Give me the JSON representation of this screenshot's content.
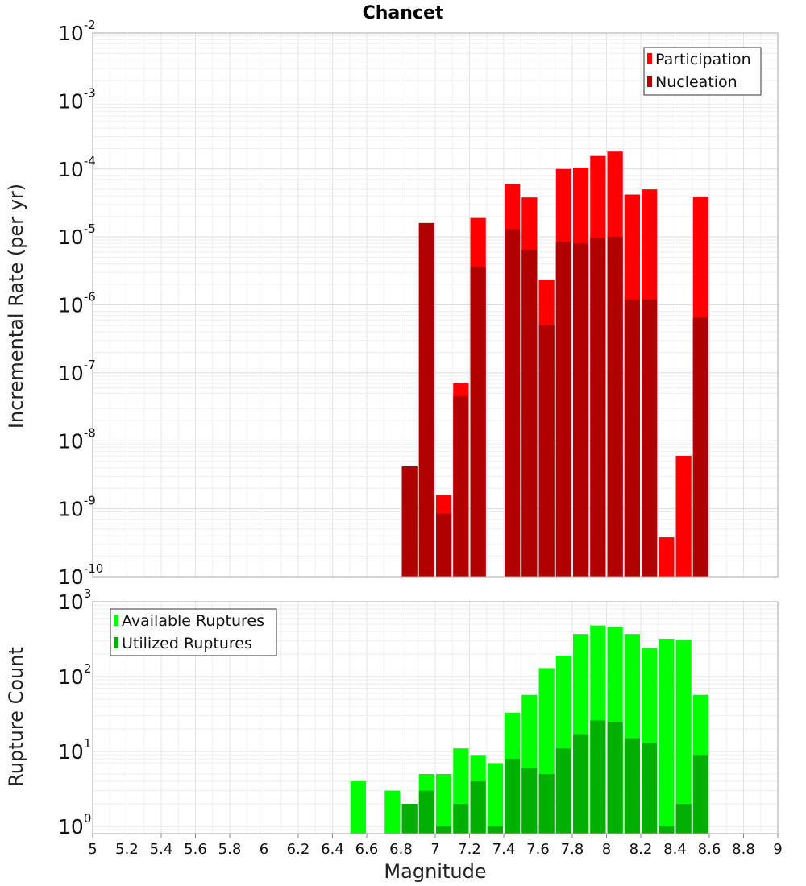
{
  "chart_data": {
    "title": "Chancet",
    "xlabel": "Magnitude",
    "xlim": [
      5,
      9
    ],
    "x_ticks": [
      "5",
      "5.2",
      "5.4",
      "5.6",
      "5.8",
      "6",
      "6.2",
      "6.4",
      "6.6",
      "6.8",
      "7",
      "7.2",
      "7.4",
      "7.6",
      "7.8",
      "8",
      "8.2",
      "8.4",
      "8.6",
      "8.8",
      "9"
    ],
    "grid": true,
    "bin_width": 0.1,
    "panels": [
      {
        "type": "bar",
        "scale": "log",
        "ylabel": "Incremental Rate (per yr)",
        "ylim": [
          1e-10,
          0.01
        ],
        "y_ticks": [
          {
            "base": "10",
            "exp": "-10"
          },
          {
            "base": "10",
            "exp": "-9"
          },
          {
            "base": "10",
            "exp": "-8"
          },
          {
            "base": "10",
            "exp": "-7"
          },
          {
            "base": "10",
            "exp": "-6"
          },
          {
            "base": "10",
            "exp": "-5"
          },
          {
            "base": "10",
            "exp": "-4"
          },
          {
            "base": "10",
            "exp": "-3"
          },
          {
            "base": "10",
            "exp": "-2"
          }
        ],
        "legend_position": "top-right",
        "series": [
          {
            "name": "Participation",
            "color": "#ff0000",
            "points": [
              {
                "x": 6.85,
                "y": 4.2e-09
              },
              {
                "x": 6.95,
                "y": 1.6e-05
              },
              {
                "x": 7.05,
                "y": 1.6e-09
              },
              {
                "x": 7.15,
                "y": 7e-08
              },
              {
                "x": 7.25,
                "y": 1.9e-05
              },
              {
                "x": 7.45,
                "y": 6e-05
              },
              {
                "x": 7.55,
                "y": 3.8e-05
              },
              {
                "x": 7.65,
                "y": 2.3e-06
              },
              {
                "x": 7.75,
                "y": 0.0001
              },
              {
                "x": 7.85,
                "y": 0.000105
              },
              {
                "x": 7.95,
                "y": 0.000155
              },
              {
                "x": 8.05,
                "y": 0.00018
              },
              {
                "x": 8.15,
                "y": 4.2e-05
              },
              {
                "x": 8.25,
                "y": 5e-05
              },
              {
                "x": 8.35,
                "y": 3.8e-10
              },
              {
                "x": 8.45,
                "y": 6e-09
              },
              {
                "x": 8.55,
                "y": 3.9e-05
              }
            ]
          },
          {
            "name": "Nucleation",
            "color": "#b00000",
            "points": [
              {
                "x": 6.85,
                "y": 4.2e-09
              },
              {
                "x": 6.95,
                "y": 1.6e-05
              },
              {
                "x": 7.05,
                "y": 8.5e-10
              },
              {
                "x": 7.15,
                "y": 4.5e-08
              },
              {
                "x": 7.25,
                "y": 3.6e-06
              },
              {
                "x": 7.45,
                "y": 1.3e-05
              },
              {
                "x": 7.55,
                "y": 6.5e-06
              },
              {
                "x": 7.65,
                "y": 5e-07
              },
              {
                "x": 7.75,
                "y": 8.5e-06
              },
              {
                "x": 7.85,
                "y": 8e-06
              },
              {
                "x": 7.95,
                "y": 9.5e-06
              },
              {
                "x": 8.05,
                "y": 1e-05
              },
              {
                "x": 8.15,
                "y": 1.2e-06
              },
              {
                "x": 8.25,
                "y": 1.2e-06
              },
              {
                "x": 8.55,
                "y": 6.5e-07
              }
            ]
          }
        ]
      },
      {
        "type": "bar",
        "scale": "log",
        "ylabel": "Rupture Count",
        "ylim": [
          0.8,
          1000
        ],
        "y_ticks": [
          {
            "value": 1,
            "base": "10",
            "exp": "0"
          },
          {
            "value": 10,
            "base": "10",
            "exp": "1"
          },
          {
            "value": 100,
            "base": "10",
            "exp": "2"
          },
          {
            "value": 1000,
            "base": "10",
            "exp": "3"
          }
        ],
        "legend_position": "top-left",
        "series": [
          {
            "name": "Available Ruptures",
            "color": "#00ff00",
            "points": [
              {
                "x": 6.55,
                "y": 4
              },
              {
                "x": 6.75,
                "y": 3
              },
              {
                "x": 6.85,
                "y": 2
              },
              {
                "x": 6.95,
                "y": 5
              },
              {
                "x": 7.05,
                "y": 5
              },
              {
                "x": 7.15,
                "y": 11
              },
              {
                "x": 7.25,
                "y": 9
              },
              {
                "x": 7.35,
                "y": 7
              },
              {
                "x": 7.45,
                "y": 33
              },
              {
                "x": 7.55,
                "y": 57
              },
              {
                "x": 7.65,
                "y": 130
              },
              {
                "x": 7.75,
                "y": 190
              },
              {
                "x": 7.85,
                "y": 370
              },
              {
                "x": 7.95,
                "y": 480
              },
              {
                "x": 8.05,
                "y": 460
              },
              {
                "x": 8.15,
                "y": 370
              },
              {
                "x": 8.25,
                "y": 240
              },
              {
                "x": 8.35,
                "y": 320
              },
              {
                "x": 8.45,
                "y": 310
              },
              {
                "x": 8.55,
                "y": 57
              }
            ]
          },
          {
            "name": "Utilized Ruptures",
            "color": "#00b000",
            "points": [
              {
                "x": 6.85,
                "y": 2
              },
              {
                "x": 6.95,
                "y": 3
              },
              {
                "x": 7.05,
                "y": 1
              },
              {
                "x": 7.15,
                "y": 2
              },
              {
                "x": 7.25,
                "y": 4
              },
              {
                "x": 7.35,
                "y": 1
              },
              {
                "x": 7.45,
                "y": 8
              },
              {
                "x": 7.55,
                "y": 6
              },
              {
                "x": 7.65,
                "y": 5
              },
              {
                "x": 7.75,
                "y": 11
              },
              {
                "x": 7.85,
                "y": 17
              },
              {
                "x": 7.95,
                "y": 26
              },
              {
                "x": 8.05,
                "y": 25
              },
              {
                "x": 8.15,
                "y": 15
              },
              {
                "x": 8.25,
                "y": 13
              },
              {
                "x": 8.35,
                "y": 1
              },
              {
                "x": 8.45,
                "y": 2
              },
              {
                "x": 8.55,
                "y": 9
              }
            ]
          }
        ]
      }
    ]
  }
}
